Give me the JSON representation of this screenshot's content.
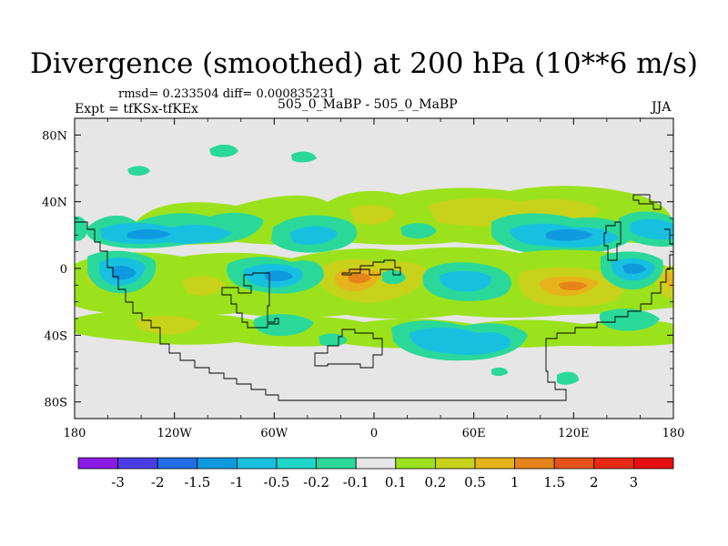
{
  "title": "Divergence (smoothed) at 200 hPa (10**6 m/s)",
  "stats": "rmsd= 0.233504  diff= 0.000835231",
  "experiment": "Expt = tfKSx-tfKEx",
  "case_label": "505_0_MaBP - 505_0_MaBP",
  "season": "JJA",
  "map": {
    "lat_ticks": [
      "80N",
      "40N",
      "0",
      "40S",
      "80S"
    ],
    "lon_ticks": [
      "180",
      "120W",
      "60W",
      "0",
      "60E",
      "120E",
      "180"
    ],
    "lat_range": [
      -90,
      90
    ],
    "lon_range": [
      -180,
      180
    ],
    "background_color": "#e6e6e6"
  },
  "colorbar": {
    "labels": [
      "-3",
      "-2",
      "-1.5",
      "-1",
      "-0.5",
      "-0.2",
      "-0.1",
      "0.1",
      "0.2",
      "0.5",
      "1",
      "1.5",
      "2",
      "3"
    ],
    "colors": [
      "#8c1ae6",
      "#4b3de6",
      "#1f6ee6",
      "#0f9ae0",
      "#18c0e0",
      "#1fd7c8",
      "#2ad89a",
      "#e6e6e6",
      "#9be21c",
      "#c8d21a",
      "#e6b41a",
      "#e6821a",
      "#e6531a",
      "#e62a14",
      "#e60e0e"
    ]
  }
}
